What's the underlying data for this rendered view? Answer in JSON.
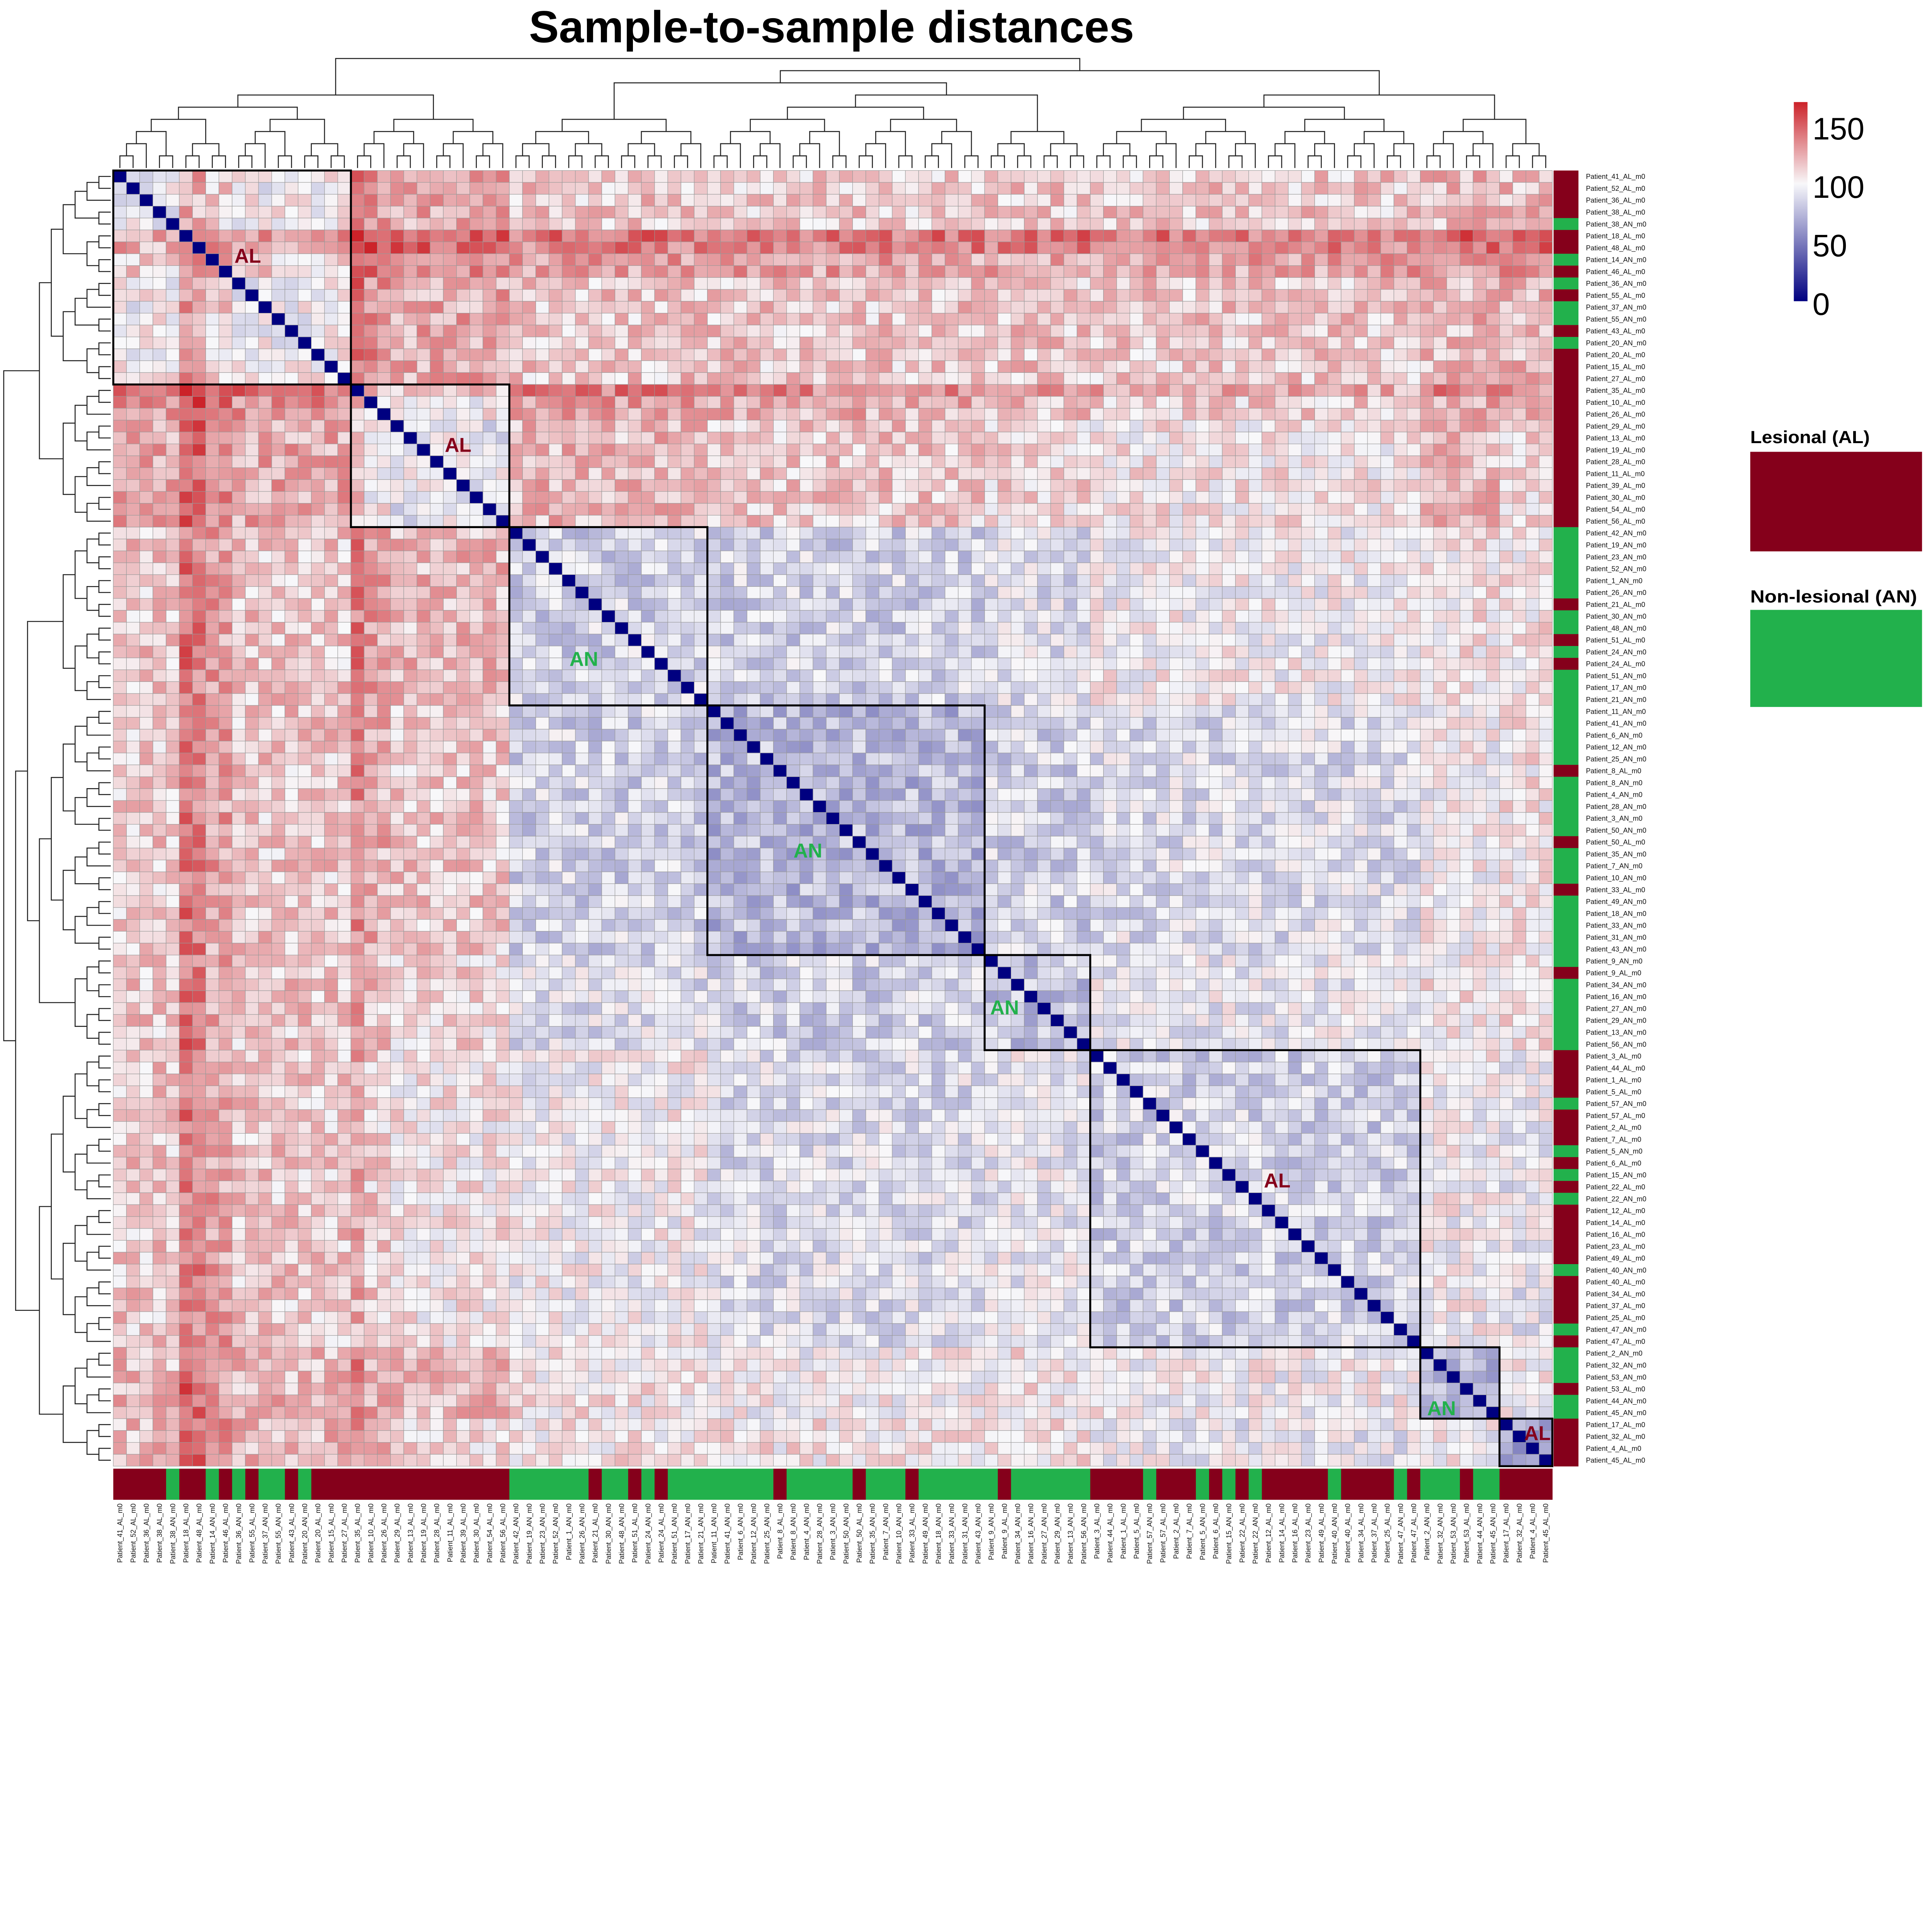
{
  "chart_data": {
    "type": "heatmap",
    "title": "Sample-to-sample distances",
    "samples": [
      "Patient_41_AL_m0",
      "Patient_52_AL_m0",
      "Patient_36_AL_m0",
      "Patient_38_AL_m0",
      "Patient_38_AN_m0",
      "Patient_18_AL_m0",
      "Patient_48_AL_m0",
      "Patient_14_AN_m0",
      "Patient_46_AL_m0",
      "Patient_36_AN_m0",
      "Patient_55_AL_m0",
      "Patient_37_AN_m0",
      "Patient_55_AN_m0",
      "Patient_43_AL_m0",
      "Patient_20_AN_m0",
      "Patient_20_AL_m0",
      "Patient_15_AL_m0",
      "Patient_27_AL_m0",
      "Patient_35_AL_m0",
      "Patient_10_AL_m0",
      "Patient_26_AL_m0",
      "Patient_29_AL_m0",
      "Patient_13_AL_m0",
      "Patient_19_AL_m0",
      "Patient_28_AL_m0",
      "Patient_11_AL_m0",
      "Patient_39_AL_m0",
      "Patient_30_AL_m0",
      "Patient_54_AL_m0",
      "Patient_56_AL_m0",
      "Patient_42_AN_m0",
      "Patient_19_AN_m0",
      "Patient_23_AN_m0",
      "Patient_52_AN_m0",
      "Patient_1_AN_m0",
      "Patient_26_AN_m0",
      "Patient_21_AL_m0",
      "Patient_30_AN_m0",
      "Patient_48_AN_m0",
      "Patient_51_AL_m0",
      "Patient_24_AN_m0",
      "Patient_24_AL_m0",
      "Patient_51_AN_m0",
      "Patient_17_AN_m0",
      "Patient_21_AN_m0",
      "Patient_11_AN_m0",
      "Patient_41_AN_m0",
      "Patient_6_AN_m0",
      "Patient_12_AN_m0",
      "Patient_25_AN_m0",
      "Patient_8_AL_m0",
      "Patient_8_AN_m0",
      "Patient_4_AN_m0",
      "Patient_28_AN_m0",
      "Patient_3_AN_m0",
      "Patient_50_AN_m0",
      "Patient_50_AL_m0",
      "Patient_35_AN_m0",
      "Patient_7_AN_m0",
      "Patient_10_AN_m0",
      "Patient_33_AL_m0",
      "Patient_49_AN_m0",
      "Patient_18_AN_m0",
      "Patient_33_AN_m0",
      "Patient_31_AN_m0",
      "Patient_43_AN_m0",
      "Patient_9_AN_m0",
      "Patient_9_AL_m0",
      "Patient_34_AN_m0",
      "Patient_16_AN_m0",
      "Patient_27_AN_m0",
      "Patient_29_AN_m0",
      "Patient_13_AN_m0",
      "Patient_56_AN_m0",
      "Patient_3_AL_m0",
      "Patient_44_AL_m0",
      "Patient_1_AL_m0",
      "Patient_5_AL_m0",
      "Patient_57_AN_m0",
      "Patient_57_AL_m0",
      "Patient_2_AL_m0",
      "Patient_7_AL_m0",
      "Patient_5_AN_m0",
      "Patient_6_AL_m0",
      "Patient_15_AN_m0",
      "Patient_22_AL_m0",
      "Patient_22_AN_m0",
      "Patient_12_AL_m0",
      "Patient_14_AL_m0",
      "Patient_16_AL_m0",
      "Patient_23_AL_m0",
      "Patient_49_AL_m0",
      "Patient_40_AN_m0",
      "Patient_40_AL_m0",
      "Patient_34_AL_m0",
      "Patient_37_AL_m0",
      "Patient_25_AL_m0",
      "Patient_47_AN_m0",
      "Patient_47_AL_m0",
      "Patient_2_AN_m0",
      "Patient_32_AN_m0",
      "Patient_53_AN_m0",
      "Patient_53_AL_m0",
      "Patient_44_AN_m0",
      "Patient_45_AN_m0",
      "Patient_17_AL_m0",
      "Patient_32_AL_m0",
      "Patient_4_AL_m0",
      "Patient_45_AL_m0"
    ],
    "clusters": [
      {
        "label": "AL",
        "size": 18
      },
      {
        "label": "AL",
        "size": 12
      },
      {
        "label": "AN",
        "size": 15
      },
      {
        "label": "AN",
        "size": 21
      },
      {
        "label": "AN",
        "size": 8
      },
      {
        "label": "AL",
        "size": 25
      },
      {
        "label": "AN",
        "size": 6
      },
      {
        "label": "AL",
        "size": 4
      }
    ],
    "block_mean_distance": [
      [
        100,
        125,
        115,
        115,
        115,
        115,
        120,
        120
      ],
      [
        125,
        95,
        120,
        115,
        110,
        105,
        120,
        110
      ],
      [
        115,
        120,
        85,
        85,
        90,
        100,
        105,
        105
      ],
      [
        115,
        115,
        85,
        75,
        85,
        90,
        100,
        105
      ],
      [
        115,
        110,
        90,
        85,
        80,
        95,
        105,
        105
      ],
      [
        115,
        105,
        100,
        90,
        95,
        85,
        100,
        95
      ],
      [
        120,
        120,
        105,
        100,
        105,
        100,
        75,
        100
      ],
      [
        120,
        110,
        105,
        105,
        105,
        95,
        100,
        70
      ]
    ],
    "diagonal": 0,
    "color_scale": {
      "ticks": [
        "0",
        "50",
        "100",
        "150"
      ],
      "range": [
        0,
        170
      ],
      "low": "#000080",
      "mid": "#F8F8FA",
      "high": "#CC2229"
    },
    "grid": true
  },
  "annotation_legend": {
    "items": [
      {
        "label": "Lesional (AL)",
        "code": "AL",
        "color": "#85001B"
      },
      {
        "label": "Non-lesional (AN)",
        "code": "AN",
        "color": "#22B14C"
      }
    ]
  }
}
